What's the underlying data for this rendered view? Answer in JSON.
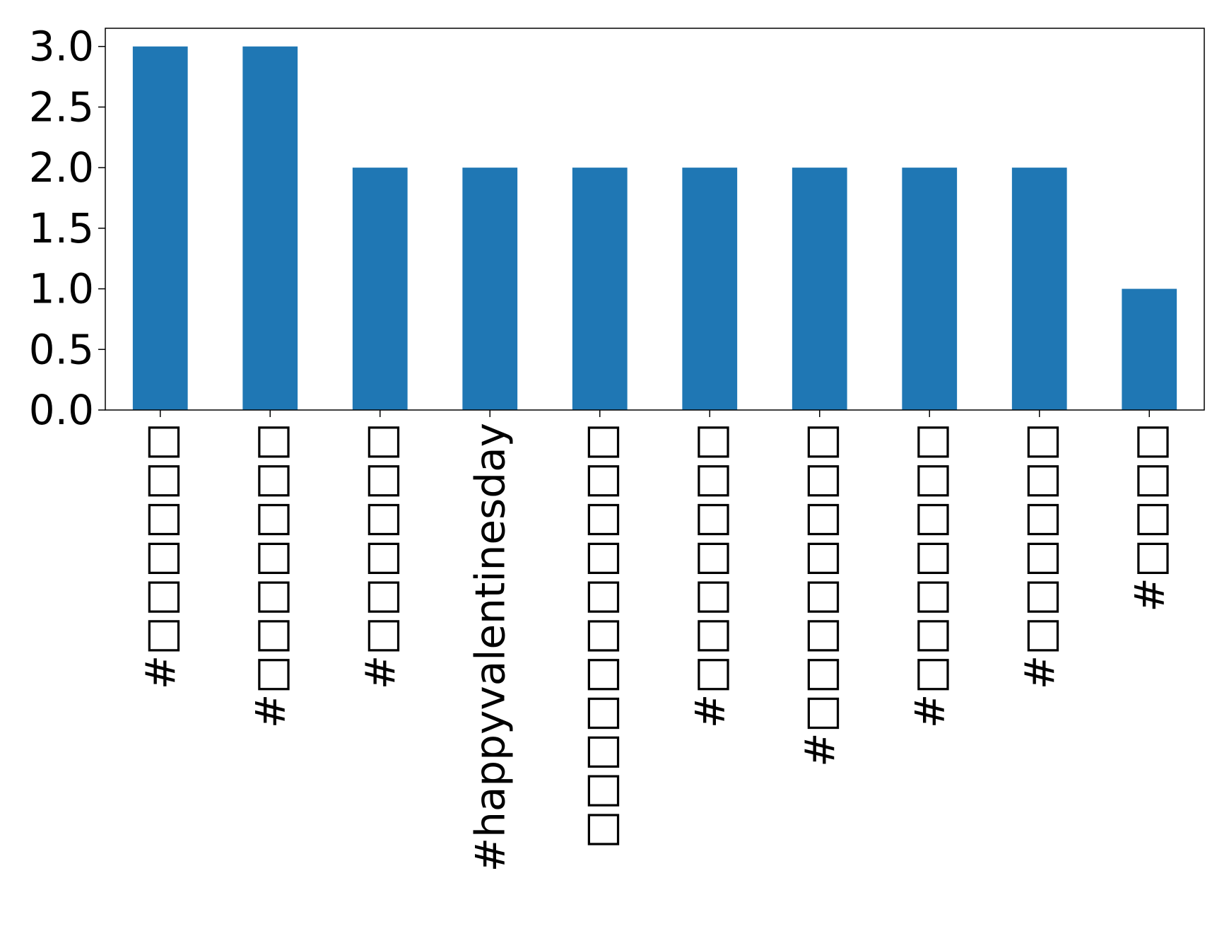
{
  "chart_data": {
    "type": "bar",
    "categories": [
      "#□□□□□□",
      "#□□□□□□□",
      "#□□□□□□",
      "#happyvalentinesday",
      "□□□□□□□□□□□",
      "#□□□□□□□",
      "#□□□□□□□□",
      "#□□□□□□□",
      "#□□□□□□",
      "#□□□□"
    ],
    "values": [
      3,
      3,
      2,
      2,
      2,
      2,
      2,
      2,
      2,
      1
    ],
    "title": "",
    "xlabel": "",
    "ylabel": "",
    "ylim": [
      0,
      3.15
    ],
    "yticks": [
      "0.0",
      "0.5",
      "1.0",
      "1.5",
      "2.0",
      "2.5",
      "3.0"
    ],
    "bar_color": "#1f77b4",
    "grid": false,
    "legend": "none"
  }
}
